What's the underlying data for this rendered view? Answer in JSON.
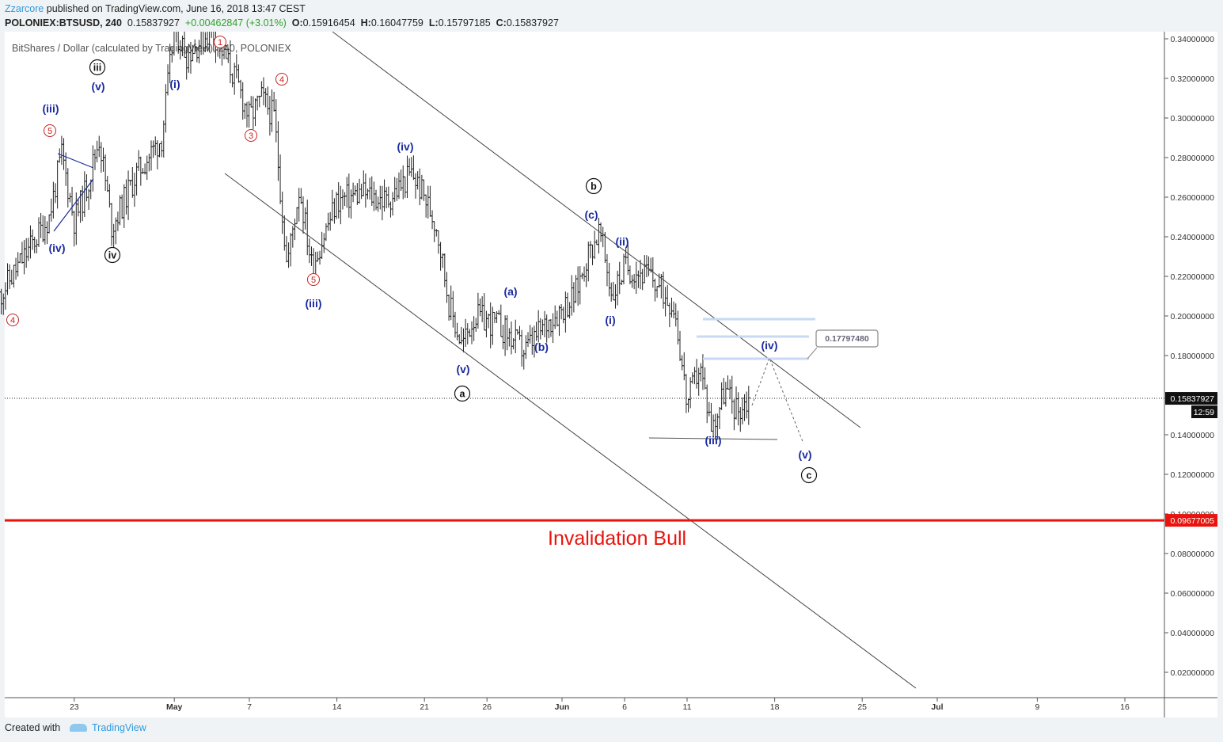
{
  "header": {
    "author": "Zzarcore",
    "published_text": " published on TradingView.com, June 16, 2018 13:47 CEST",
    "symbol": "POLONIEX:BTSUSD, 240",
    "last": "0.15837927",
    "change": "+0.00462847 (+3.01%)",
    "open_label": "O:",
    "open": "0.15916454",
    "high_label": "H:",
    "high": "0.16047759",
    "low_label": "L:",
    "low": "0.15797185",
    "close_label": "C:",
    "close": "0.15837927"
  },
  "chart_title": "BitShares / Dollar (calculated by TradingView), 240, POLONIEX",
  "footer": {
    "created_with": "Created with",
    "brand": "TradingView"
  },
  "colors": {
    "background": "#ffffff",
    "bars": "#222222",
    "wave_blue": "#1a2aa0",
    "wave_red": "#c8201f",
    "invalidation_line": "#e8140d",
    "target_zone": "#c9d9f3"
  },
  "chart_data": {
    "type": "line",
    "price_axis": {
      "ticks": [
        "0.34000000",
        "0.32000000",
        "0.30000000",
        "0.28000000",
        "0.26000000",
        "0.24000000",
        "0.22000000",
        "0.20000000",
        "0.18000000",
        "0.14000000",
        "0.12000000",
        "0.10000000",
        "0.08000000",
        "0.06000000",
        "0.04000000",
        "0.02000000"
      ],
      "current_price": "0.15837927",
      "countdown": "12:59",
      "invalidation_price": "0.09677005",
      "ylim": [
        0.005,
        0.345
      ]
    },
    "time_axis": {
      "ticks": [
        "23",
        "May",
        "7",
        "14",
        "21",
        "26",
        "Jun",
        "6",
        "11",
        "18",
        "25",
        "Jul",
        "9",
        "16"
      ]
    },
    "series": [
      {
        "x": [
          "2018-04-17",
          "2018-04-19",
          "2018-04-21",
          "2018-04-22",
          "2018-04-23",
          "2018-04-24",
          "2018-04-25",
          "2018-04-26",
          "2018-04-28",
          "2018-04-30",
          "2018-05-01",
          "2018-05-02",
          "2018-05-04",
          "2018-05-06",
          "2018-05-07",
          "2018-05-08",
          "2018-05-09",
          "2018-05-10",
          "2018-05-11",
          "2018-05-12",
          "2018-05-14",
          "2018-05-16",
          "2018-05-18",
          "2018-05-20",
          "2018-05-21",
          "2018-05-22",
          "2018-05-23",
          "2018-05-24",
          "2018-05-25",
          "2018-05-27",
          "2018-05-29",
          "2018-05-31",
          "2018-06-02",
          "2018-06-03",
          "2018-06-04",
          "2018-06-05",
          "2018-06-06",
          "2018-06-08",
          "2018-06-10",
          "2018-06-11",
          "2018-06-12",
          "2018-06-13",
          "2018-06-14",
          "2018-06-15",
          "2018-06-16"
        ],
        "values": [
          0.21,
          0.23,
          0.25,
          0.282,
          0.248,
          0.265,
          0.29,
          0.245,
          0.272,
          0.29,
          0.345,
          0.332,
          0.345,
          0.318,
          0.3,
          0.31,
          0.3,
          0.225,
          0.265,
          0.225,
          0.258,
          0.262,
          0.258,
          0.272,
          0.26,
          0.245,
          0.205,
          0.185,
          0.2,
          0.195,
          0.182,
          0.198,
          0.21,
          0.23,
          0.243,
          0.21,
          0.225,
          0.22,
          0.205,
          0.155,
          0.175,
          0.143,
          0.163,
          0.152,
          0.158
        ]
      }
    ],
    "annotations": {
      "blue_waves": [
        "(iii)",
        "(v)",
        "(iv)",
        "(i)",
        "(iii)",
        "(iv)",
        "(v)",
        "(a)",
        "(b)",
        "(c)",
        "(ii)",
        "(i)",
        "(iv)",
        "(iii)",
        "(v)"
      ],
      "red_waves": [
        "4",
        "5",
        "1",
        "3",
        "4",
        "5"
      ],
      "circled_waves": [
        "iii",
        "iv",
        "b",
        "a",
        "c"
      ],
      "target_price_label": "0.17797480",
      "invalidation_text": "Invalidation Bull"
    }
  }
}
